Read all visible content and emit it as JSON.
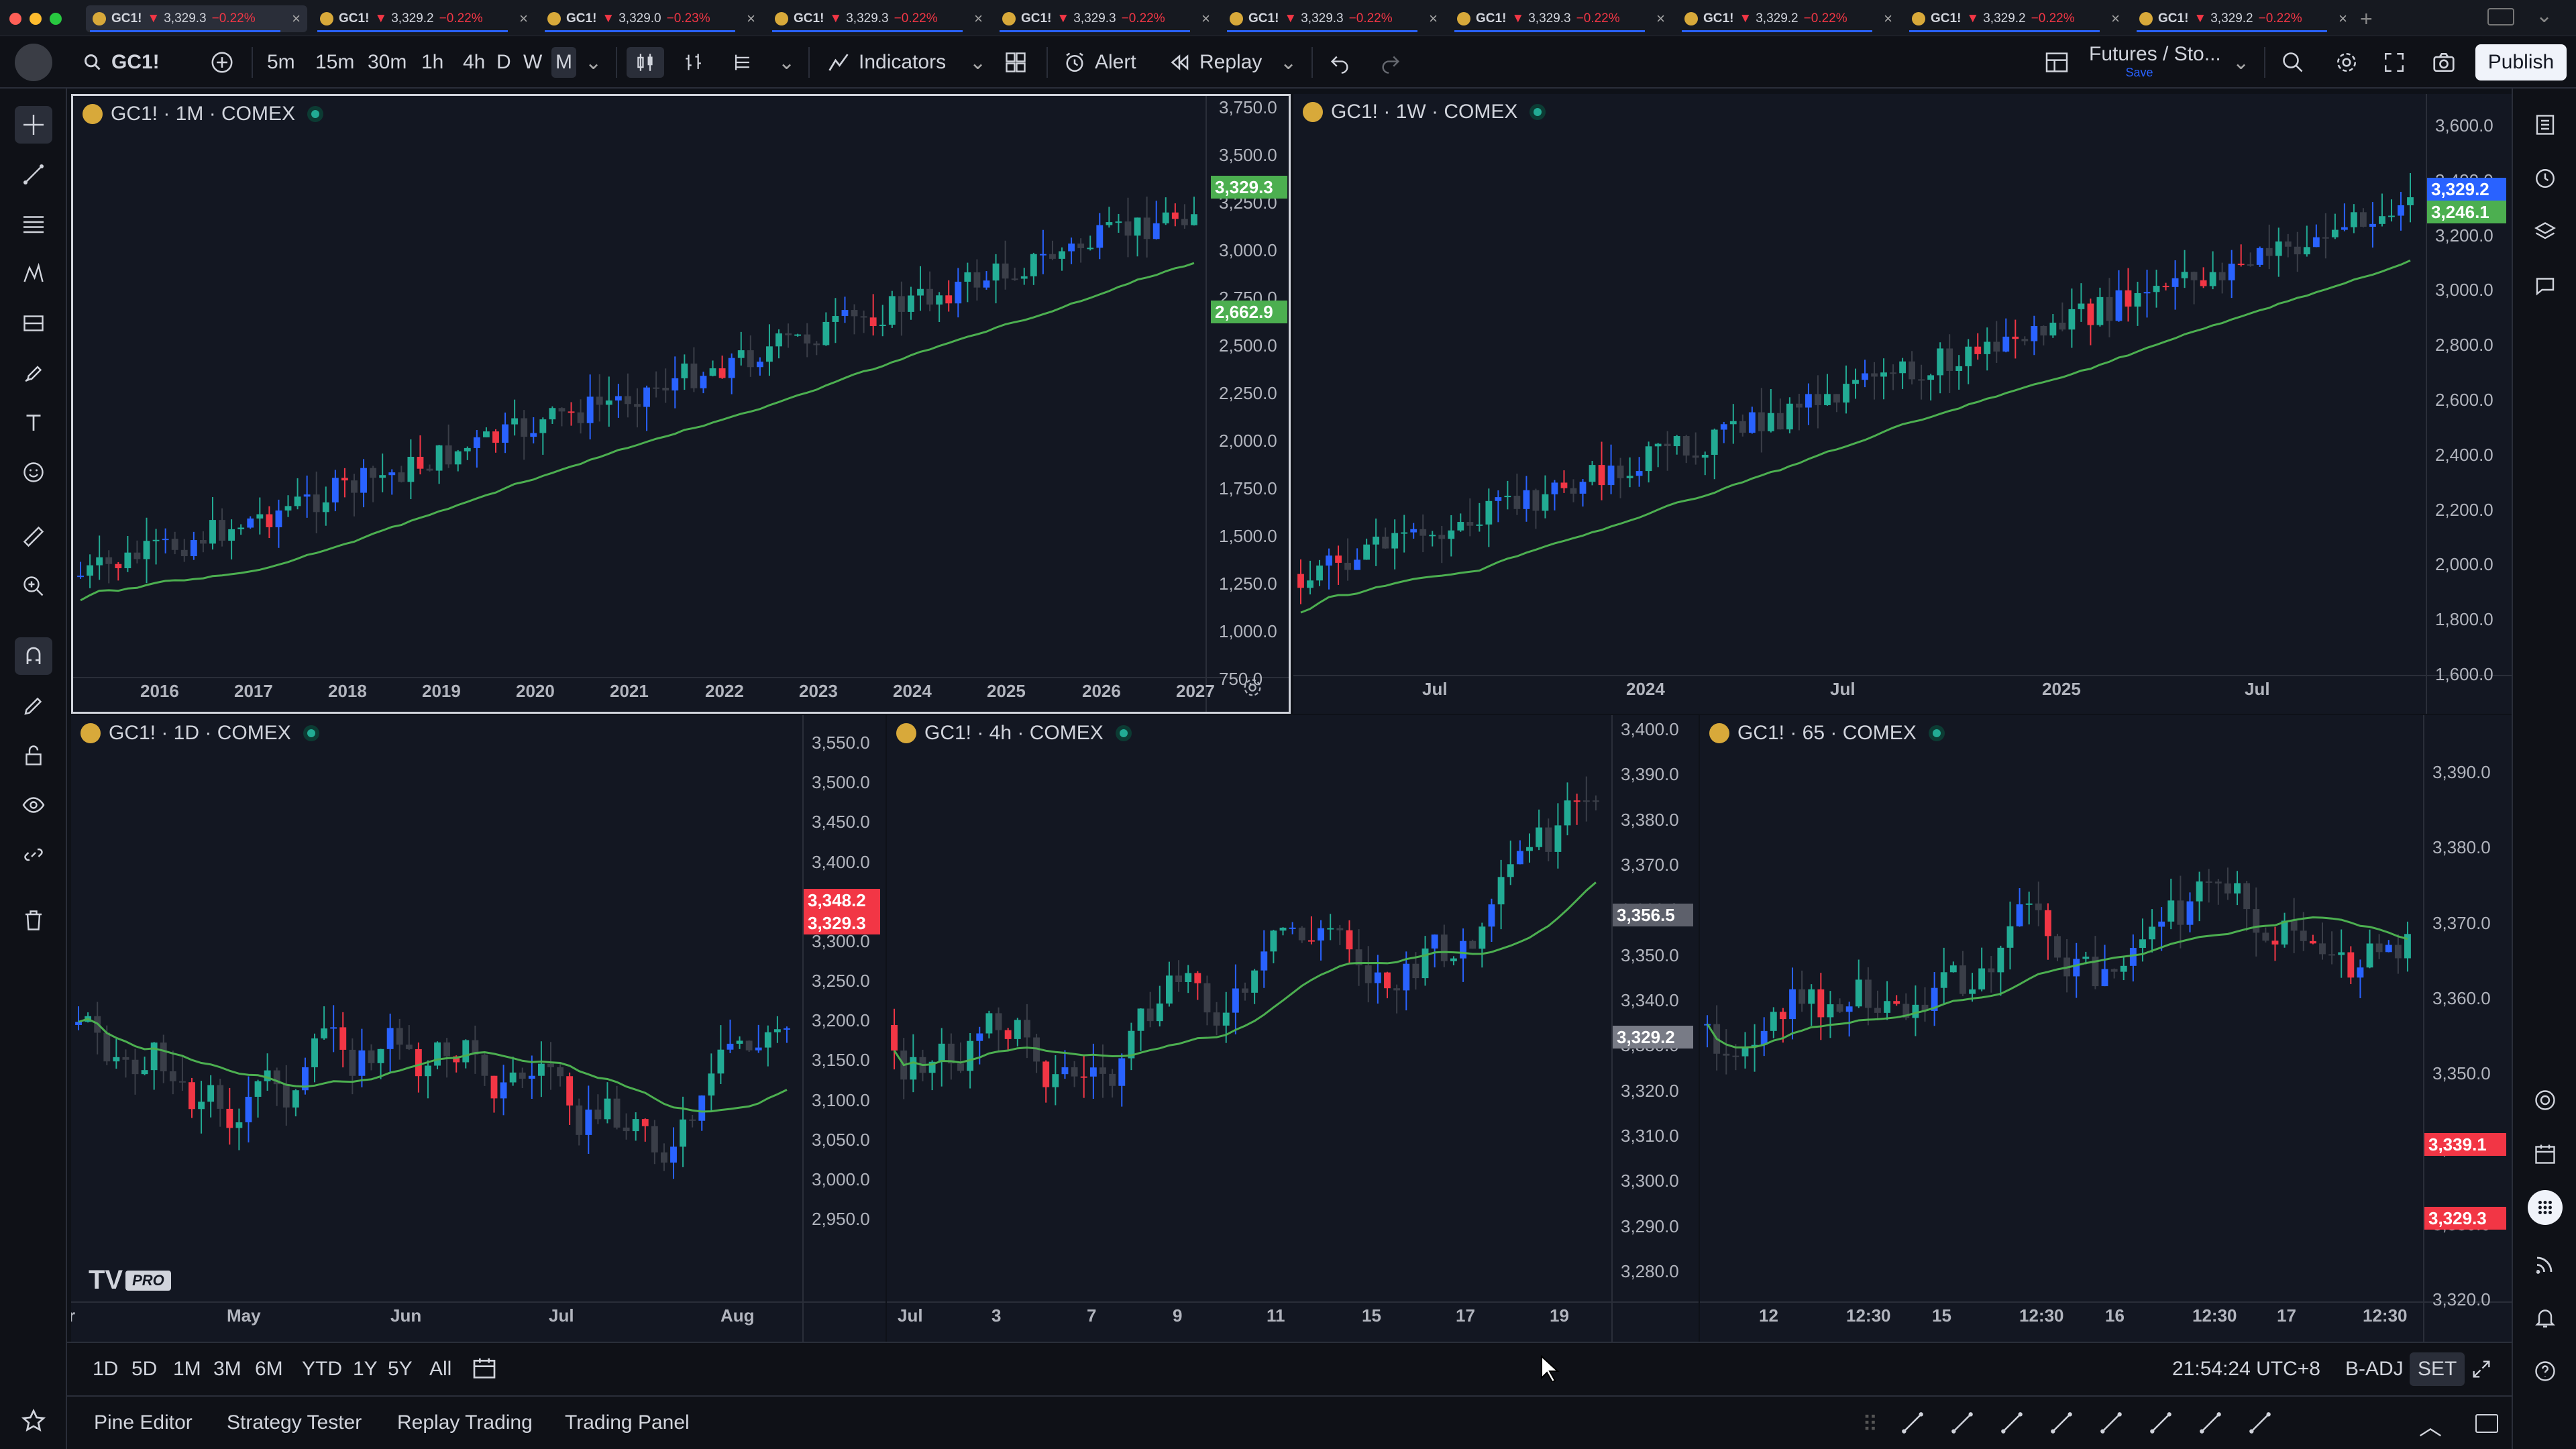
{
  "tabs": [
    {
      "symbol": "GC1!",
      "price": "3,329.3",
      "change": "−0.22%"
    },
    {
      "symbol": "GC1!",
      "price": "3,329.2",
      "change": "−0.22%"
    },
    {
      "symbol": "GC1!",
      "price": "3,329.0",
      "change": "−0.23%"
    },
    {
      "symbol": "GC1!",
      "price": "3,329.3",
      "change": "−0.22%"
    },
    {
      "symbol": "GC1!",
      "price": "3,329.3",
      "change": "−0.22%"
    },
    {
      "symbol": "GC1!",
      "price": "3,329.3",
      "change": "−0.22%"
    },
    {
      "symbol": "GC1!",
      "price": "3,329.3",
      "change": "−0.22%"
    },
    {
      "symbol": "GC1!",
      "price": "3,329.2",
      "change": "−0.22%"
    },
    {
      "symbol": "GC1!",
      "price": "3,329.2",
      "change": "−0.22%"
    },
    {
      "symbol": "GC1!",
      "price": "3,329.2",
      "change": "−0.22%"
    }
  ],
  "toolbar": {
    "symbol": "GC1!",
    "intervals": [
      "5m",
      "15m",
      "30m",
      "1h",
      "4h",
      "D",
      "W",
      "M"
    ],
    "active_interval": "M",
    "indicators": "Indicators",
    "alert": "Alert",
    "replay": "Replay",
    "layout_name": "Futures / Sto...",
    "layout_save": "Save",
    "publish": "Publish"
  },
  "colors": {
    "up": "#22ab94",
    "down": "#f23645",
    "accent": "#2962ff",
    "ma": "#4caf50",
    "bg": "#131722"
  },
  "panes": [
    {
      "title": "GC1! · 1M · COMEX",
      "y_ticks": [
        "3,750.0",
        "3,500.0",
        "3,250.0",
        "3,000.0",
        "2,750.0",
        "2,500.0",
        "2,250.0",
        "2,000.0",
        "1,750.0",
        "1,500.0",
        "1,250.0",
        "1,000.0",
        "750.0"
      ],
      "x_ticks": [
        "2016",
        "2017",
        "2018",
        "2019",
        "2020",
        "2021",
        "2022",
        "2023",
        "2024",
        "2025",
        "2026",
        "2027"
      ],
      "price_labels": [
        {
          "text": "3,329.3",
          "color": "#4caf50"
        },
        {
          "text": "2,662.9",
          "color": "#4caf50"
        }
      ]
    },
    {
      "title": "GC1! · 1W · COMEX",
      "y_ticks": [
        "3,600.0",
        "3,400.0",
        "3,200.0",
        "3,000.0",
        "2,800.0",
        "2,600.0",
        "2,400.0",
        "2,200.0",
        "2,000.0",
        "1,800.0",
        "1,600.0"
      ],
      "x_ticks": [
        "Jul",
        "2024",
        "Jul",
        "2025",
        "Jul"
      ],
      "price_labels": [
        {
          "text": "3,329.2",
          "color": "#2962ff"
        },
        {
          "text": "3,246.1",
          "color": "#4caf50"
        }
      ]
    },
    {
      "title": "GC1! · 1D · COMEX",
      "y_ticks": [
        "3,550.0",
        "3,500.0",
        "3,450.0",
        "3,400.0",
        "3,350.0",
        "3,300.0",
        "3,250.0",
        "3,200.0",
        "3,150.0",
        "3,100.0",
        "3,050.0",
        "3,000.0",
        "2,950.0"
      ],
      "x_ticks": [
        "pr",
        "May",
        "Jun",
        "Jul",
        "Aug"
      ],
      "price_labels": [
        {
          "text": "3,348.2",
          "color": "#f23645"
        },
        {
          "text": "3,329.3",
          "color": "#f23645"
        }
      ]
    },
    {
      "title": "GC1! · 4h · COMEX",
      "y_ticks": [
        "3,400.0",
        "3,390.0",
        "3,380.0",
        "3,370.0",
        "3,360.0",
        "3,350.0",
        "3,340.0",
        "3,330.0",
        "3,320.0",
        "3,310.0",
        "3,300.0",
        "3,290.0",
        "3,280.0"
      ],
      "x_ticks": [
        "Jul",
        "3",
        "7",
        "9",
        "11",
        "15",
        "17",
        "19"
      ],
      "price_labels": [
        {
          "text": "3,356.5",
          "color": "#5d606b"
        },
        {
          "text": "3,329.2",
          "color": "#787b86"
        }
      ]
    },
    {
      "title": "GC1! · 65 · COMEX",
      "y_ticks": [
        "3,390.0",
        "3,380.0",
        "3,370.0",
        "3,360.0",
        "3,350.0",
        "3,340.0",
        "3,330.0",
        "3,320.0"
      ],
      "x_ticks": [
        "12",
        "12:30",
        "15",
        "12:30",
        "16",
        "12:30",
        "17",
        "12:30"
      ],
      "price_labels": [
        {
          "text": "3,339.1",
          "color": "#f23645"
        },
        {
          "text": "3,329.3",
          "color": "#f23645"
        }
      ]
    }
  ],
  "watermark": "PRO",
  "ranges": [
    "1D",
    "5D",
    "1M",
    "3M",
    "6M",
    "YTD",
    "1Y",
    "5Y",
    "All"
  ],
  "status": {
    "time": "21:54:24 UTC+8",
    "adj": "B-ADJ",
    "session": "SET"
  },
  "footer_tabs": [
    "Pine Editor",
    "Strategy Tester",
    "Replay Trading",
    "Trading Panel"
  ]
}
